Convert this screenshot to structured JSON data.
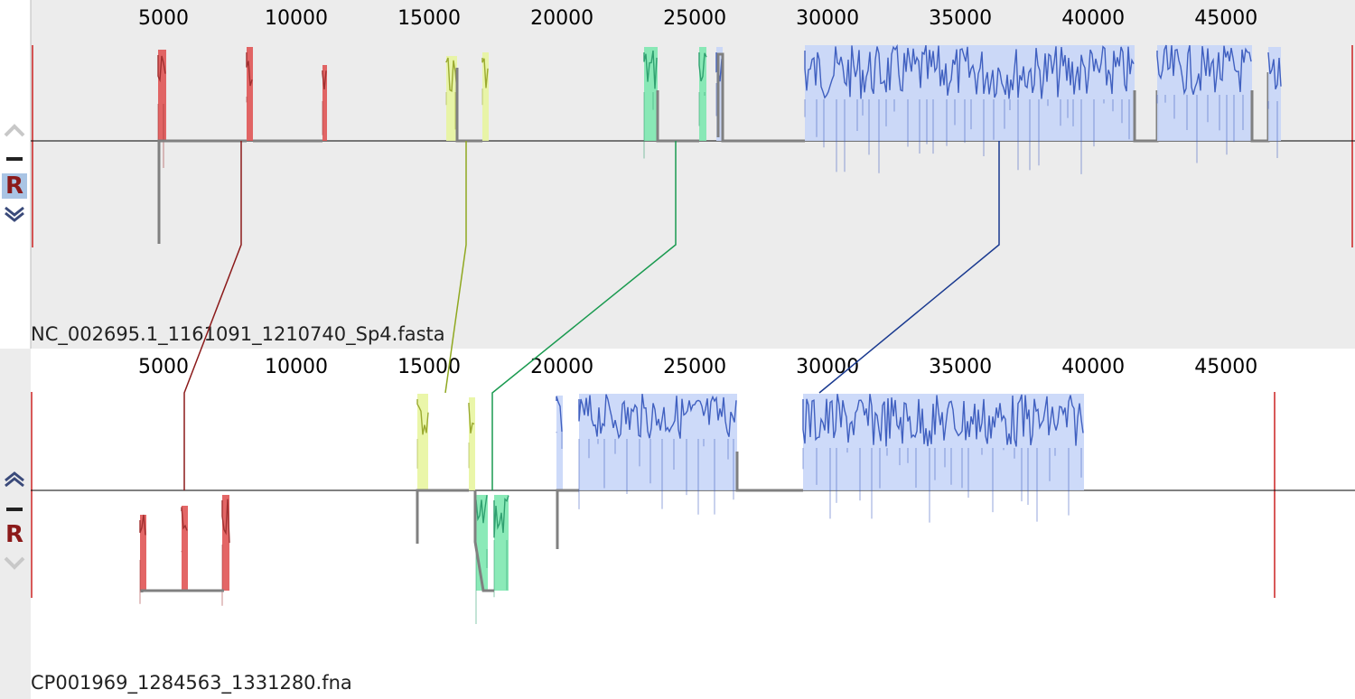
{
  "sequences": [
    {
      "name": "NC_002695.1_1161091_1210740_Sp4.fasta",
      "ruler_ticks": [
        5000,
        10000,
        15000,
        20000,
        25000,
        30000,
        35000,
        40000,
        45000
      ],
      "controls": {
        "up_icon": "chevron-up-icon",
        "minus_label": "—",
        "reverse_label": "R",
        "down_icon": "chevron-down-icon",
        "reverse_selected": true
      }
    },
    {
      "name": "CP001969_1284563_1331280.fna",
      "ruler_ticks": [
        5000,
        10000,
        15000,
        20000,
        25000,
        30000,
        35000,
        40000,
        45000
      ],
      "controls": {
        "up_icon": "chevron-up-icon",
        "minus_label": "—",
        "reverse_label": "R",
        "down_icon": "chevron-down-icon",
        "reverse_selected": false
      }
    }
  ],
  "colors": {
    "panel_bg_top": "#ececec",
    "panel_bg_bottom": "#ffffff",
    "lcb_red": "#e05555",
    "lcb_red_dark": "#a03030",
    "lcb_yellow": "#e8f5a0",
    "lcb_yellow_dark": "#9aaa30",
    "lcb_green": "#7ee8b0",
    "lcb_green_dark": "#30a070",
    "lcb_blue_fill": "#c8d6f8",
    "lcb_blue_line": "#4060c0",
    "connector_red": "#8b1a1a",
    "connector_olive": "#8fa820",
    "connector_green": "#1a9a50",
    "connector_blue": "#1a3a90",
    "gap_gray": "#808080"
  }
}
